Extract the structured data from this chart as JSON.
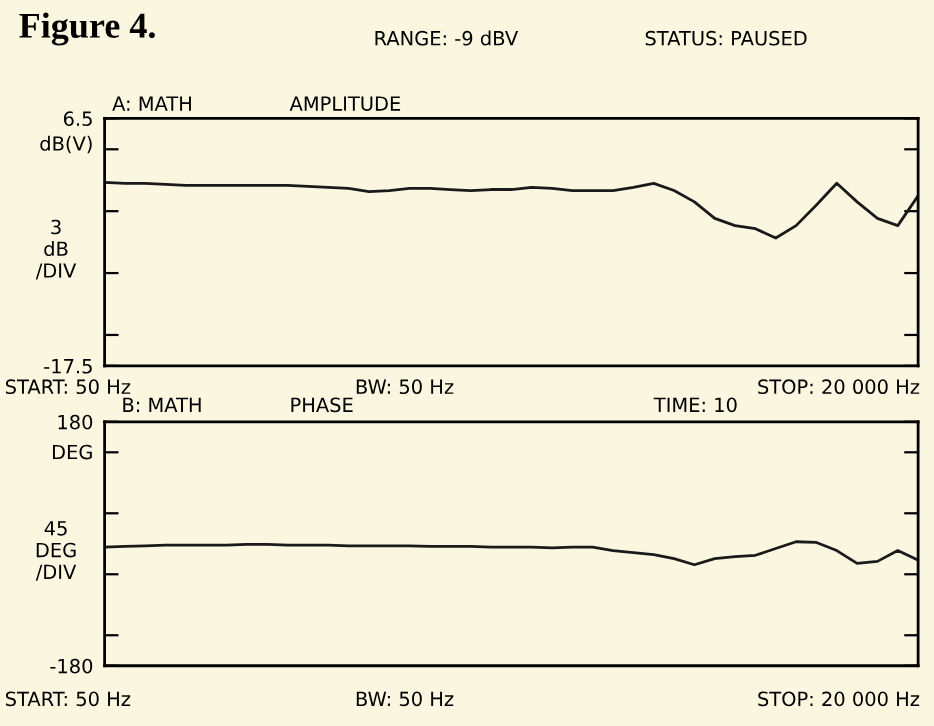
{
  "chart_data": [
    {
      "type": "line",
      "title": "Figure 4.",
      "ylabel": "3\ndB\n/DIV",
      "ylim": [
        -17.5,
        6.5
      ],
      "tick_labels": "y",
      "grid": false,
      "legend": false,
      "marker": "none",
      "line_style": "solid",
      "categories": [
        null,
        null,
        null,
        null,
        null,
        null,
        null,
        null,
        null,
        null,
        null,
        null,
        null,
        null,
        null,
        null,
        null,
        null,
        null,
        null,
        null,
        null,
        null,
        null,
        null,
        null,
        null,
        null,
        null,
        null,
        null,
        null,
        null,
        null,
        null,
        null,
        null,
        null,
        null,
        null,
        null
      ],
      "yticks": [
        6.5,
        {
          "value": 3.5,
          "label": null
        },
        {
          "value": -2.5,
          "label": null
        },
        {
          "value": -8.5,
          "label": null
        },
        {
          "value": -14.5,
          "label": null
        },
        -17.5
      ],
      "annotations": [
        "RANGE: -9 dBV",
        "STATUS: PAUSED",
        "A: MATH",
        "AMPLITUDE",
        "START: 50 Hz",
        "BW: 50 Hz",
        "STOP: 20 000 Hz",
        "dB(V)"
      ],
      "series": [
        {
          "color": "#1a1a1a",
          "values": [
            0.3,
            0.2,
            0.2,
            0.1,
            0.0,
            0.0,
            0.0,
            0.0,
            0.0,
            0.0,
            -0.1,
            -0.2,
            -0.3,
            -0.6,
            -0.5,
            -0.3,
            -0.3,
            -0.4,
            -0.5,
            -0.4,
            -0.4,
            -0.2,
            -0.3,
            -0.5,
            -0.5,
            -0.5,
            -0.2,
            0.2,
            -0.5,
            -1.6,
            -3.2,
            -3.9,
            -4.2,
            -5.1,
            -3.9,
            -1.9,
            0.2,
            -1.6,
            -3.2,
            -3.9,
            -1.0
          ]
        }
      ]
    },
    {
      "type": "line",
      "ylabel": "45\nDEG\n/DIV",
      "ylim": [
        -180,
        180
      ],
      "tick_labels": "y",
      "grid": false,
      "legend": false,
      "marker": "none",
      "line_style": "solid",
      "categories": [
        null,
        null,
        null,
        null,
        null,
        null,
        null,
        null,
        null,
        null,
        null,
        null,
        null,
        null,
        null,
        null,
        null,
        null,
        null,
        null,
        null,
        null,
        null,
        null,
        null,
        null,
        null,
        null,
        null,
        null,
        null,
        null,
        null,
        null,
        null,
        null,
        null,
        null,
        null,
        null,
        null
      ],
      "yticks": [
        180,
        {
          "value": 135,
          "label": null
        },
        {
          "value": 45,
          "label": null
        },
        {
          "value": -45,
          "label": null
        },
        {
          "value": -135,
          "label": null
        },
        -180
      ],
      "annotations": [
        "B: MATH",
        "PHASE",
        "TIME: 10",
        "START: 50 Hz",
        "BW: 50 Hz",
        "STOP: 20 000 Hz",
        "DEG"
      ],
      "series": [
        {
          "color": "#1a1a1a",
          "values": [
            -5,
            -4,
            -3,
            -2,
            -2,
            -2,
            -2,
            -1,
            -1,
            -2,
            -2,
            -2,
            -3,
            -3,
            -3,
            -3,
            -4,
            -4,
            -4,
            -5,
            -5,
            -5,
            -6,
            -5,
            -5,
            -10,
            -13,
            -16,
            -22,
            -31,
            -22,
            -19,
            -17,
            -7,
            3,
            2,
            -10,
            -29,
            -26,
            -10,
            -24
          ]
        }
      ]
    }
  ]
}
